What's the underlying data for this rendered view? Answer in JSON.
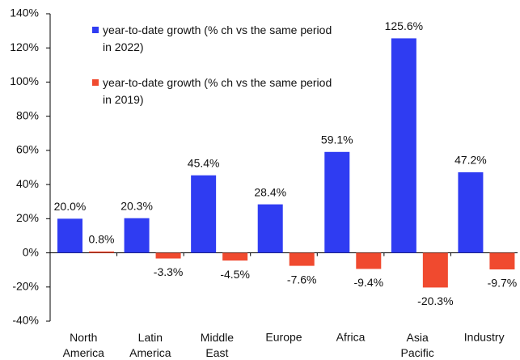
{
  "chart_data": {
    "type": "bar",
    "categories": [
      "North America",
      "Latin America",
      "Middle East",
      "Europe",
      "Africa",
      "Asia Pacific",
      "Industry"
    ],
    "series": [
      {
        "name": "year-to-date growth (% ch vs the same period in 2022)",
        "color": "#2f3cf2",
        "values": [
          20.0,
          20.3,
          45.4,
          28.4,
          59.1,
          125.6,
          47.2
        ],
        "value_labels": [
          "20.0%",
          "20.3%",
          "45.4%",
          "28.4%",
          "59.1%",
          "125.6%",
          "47.2%"
        ]
      },
      {
        "name": "year-to-date growth (% ch vs the same period in 2019)",
        "color": "#f04a2f",
        "values": [
          0.8,
          -3.3,
          -4.5,
          -7.6,
          -9.4,
          -20.3,
          -9.7
        ],
        "value_labels": [
          "0.8%",
          "-3.3%",
          "-4.5%",
          "-7.6%",
          "-9.4%",
          "-20.3%",
          "-9.7%"
        ]
      }
    ],
    "ylim": [
      -40,
      140
    ],
    "yticks": [
      {
        "value": -40,
        "label": "-40%"
      },
      {
        "value": -20,
        "label": "-20%"
      },
      {
        "value": 0,
        "label": "0%"
      },
      {
        "value": 20,
        "label": "20%"
      },
      {
        "value": 40,
        "label": "40%"
      },
      {
        "value": 60,
        "label": "60%"
      },
      {
        "value": 80,
        "label": "80%"
      },
      {
        "value": 100,
        "label": "100%"
      },
      {
        "value": 120,
        "label": "120%"
      },
      {
        "value": 140,
        "label": "140%"
      }
    ]
  }
}
